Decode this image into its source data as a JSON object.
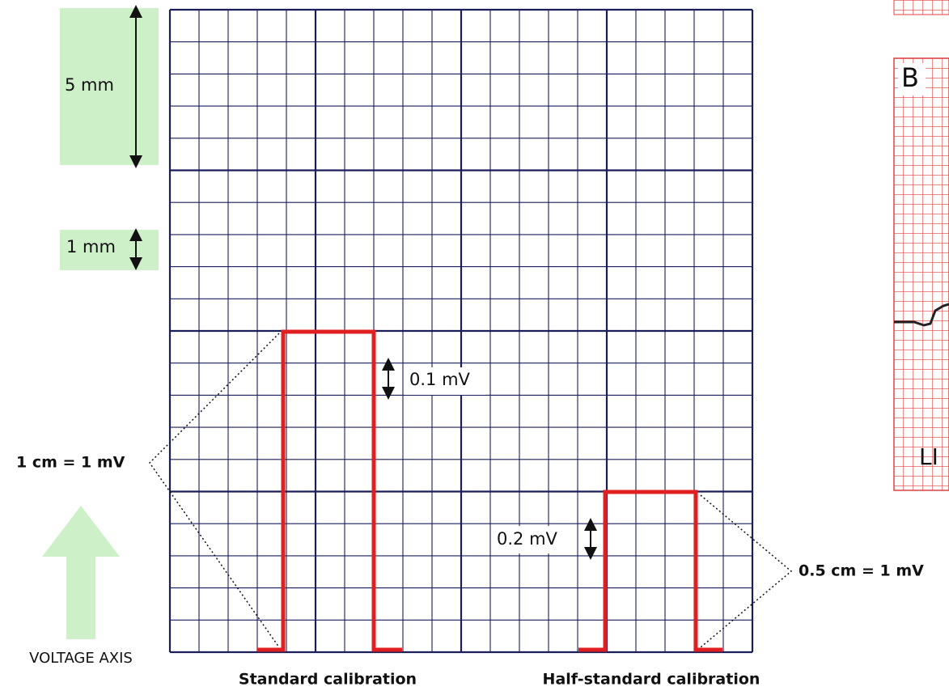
{
  "labels": {
    "five_mm": "5 mm",
    "one_mm": "1 mm",
    "voltage_axis": "VOLTAGE AXIS",
    "standard_scale": "1 cm = 1 mV",
    "half_scale": "0.5 cm = 1 mV",
    "standard_step": "0.1 mV",
    "half_step": "0.2 mV",
    "standard_caption": "Standard calibration",
    "half_caption": "Half-standard calibration",
    "panel_b": "B",
    "lead": "LI"
  }
}
